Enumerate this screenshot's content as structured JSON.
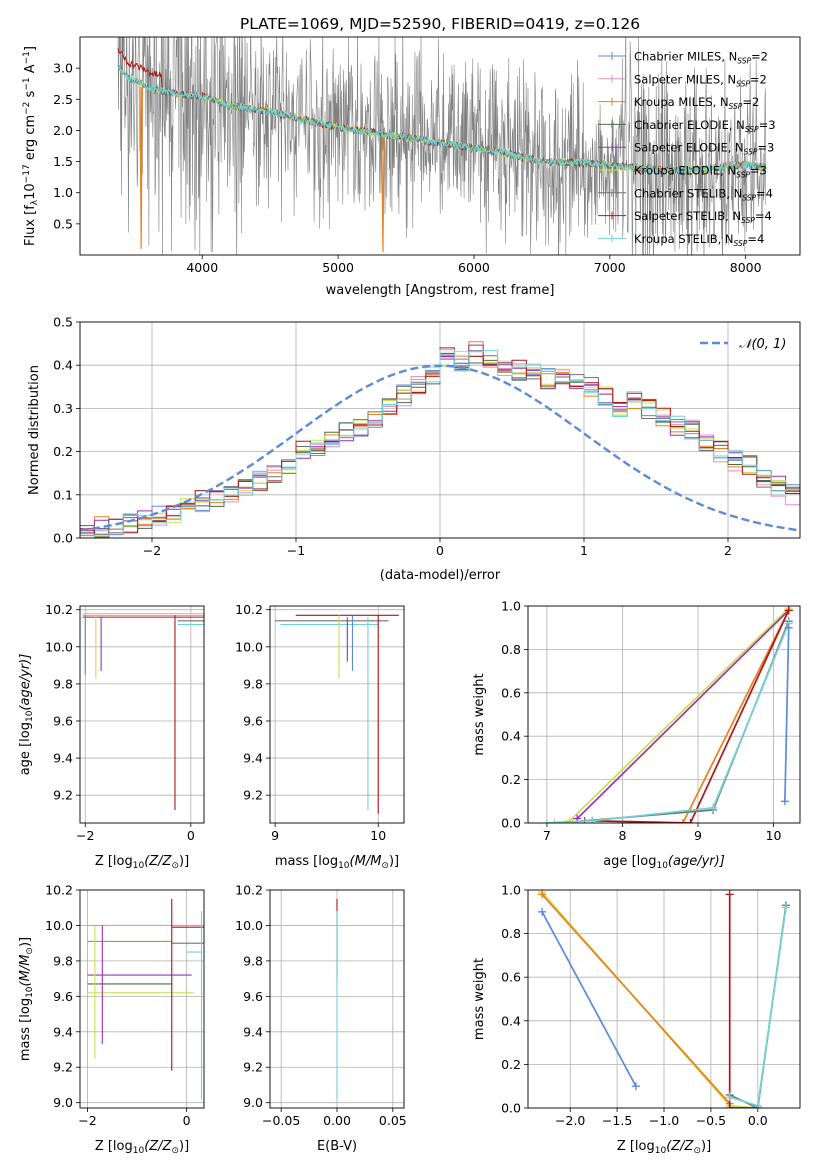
{
  "figure": {
    "title": "PLATE=1069, MJD=52590, FIBERID=0419, z=0.126"
  },
  "colors": {
    "chabrier_miles": "#5b8bd9",
    "salpeter_miles": "#e58fbf",
    "kroupa_miles": "#e8801c",
    "chabrier_elodie": "#4d6b4d",
    "salpeter_elodie": "#9b30b5",
    "kroupa_elodie": "#c8e04f",
    "chabrier_stelib": "#707070",
    "salpeter_stelib": "#b01515",
    "kroupa_stelib": "#6fd3d6",
    "data": "#808080",
    "gaussian": "#5b8bd9",
    "grid": "#b0b0b0"
  },
  "chart_data": [
    {
      "type": "line",
      "id": "spectrum",
      "title": "PLATE=1069, MJD=52590, FIBERID=0419, z=0.126",
      "xlabel": "wavelength [Angstrom, rest frame]",
      "ylabel": "Flux [f_λ 10^-17 erg cm^-2 s^-1 A^-1]",
      "ylabel_parts": {
        "pre": "Flux [f",
        "sub": "λ",
        "mid": "10",
        "sup1": "−17",
        "rest1": " erg cm",
        "sup2": "−2",
        "rest2": " s",
        "sup3": "−1",
        "rest3": " A",
        "sup4": "−1",
        "end": "]"
      },
      "xlim": [
        3100,
        8400
      ],
      "ylim": [
        0,
        3.5
      ],
      "xticks": [
        4000,
        5000,
        6000,
        7000,
        8000
      ],
      "yticks": [
        0.5,
        1.0,
        1.5,
        2.0,
        2.5,
        3.0
      ],
      "ytick_labels": [
        "0.5",
        "1.0",
        "1.5",
        "2.0",
        "2.5",
        "3.0"
      ],
      "continuum": [
        [
          3380,
          3.05
        ],
        [
          3450,
          2.85
        ],
        [
          3550,
          2.75
        ],
        [
          3650,
          2.65
        ],
        [
          3800,
          2.6
        ],
        [
          4000,
          2.55
        ],
        [
          4200,
          2.4
        ],
        [
          4500,
          2.3
        ],
        [
          4800,
          2.15
        ],
        [
          5000,
          2.05
        ],
        [
          5300,
          1.95
        ],
        [
          5600,
          1.85
        ],
        [
          5900,
          1.75
        ],
        [
          6200,
          1.65
        ],
        [
          6500,
          1.5
        ],
        [
          6800,
          1.48
        ],
        [
          7100,
          1.42
        ],
        [
          7400,
          1.35
        ],
        [
          7700,
          1.38
        ],
        [
          8000,
          1.45
        ],
        [
          8150,
          1.4
        ]
      ],
      "legend": [
        {
          "name": "Chabrier MILES",
          "nssp": "2",
          "color": "chabrier_miles"
        },
        {
          "name": "Salpeter MILES",
          "nssp": "2",
          "color": "salpeter_miles"
        },
        {
          "name": "Kroupa MILES",
          "nssp": "2",
          "color": "kroupa_miles"
        },
        {
          "name": "Chabrier ELODIE",
          "nssp": "3",
          "color": "chabrier_elodie"
        },
        {
          "name": "Salpeter ELODIE",
          "nssp": "3",
          "color": "salpeter_elodie"
        },
        {
          "name": "Kroupa ELODIE",
          "nssp": "3",
          "color": "kroupa_elodie"
        },
        {
          "name": "Chabrier STELIB",
          "nssp": "4",
          "color": "chabrier_stelib"
        },
        {
          "name": "Salpeter STELIB",
          "nssp": "4",
          "color": "salpeter_stelib"
        },
        {
          "name": "Kroupa STELIB",
          "nssp": "4",
          "color": "kroupa_stelib"
        }
      ],
      "legend_label_template": ", N",
      "legend_sub": "SSP",
      "legend_eq": "="
    },
    {
      "type": "line",
      "id": "residuals",
      "xlabel": "(data-model)/error",
      "ylabel": "Normed distribution",
      "xlim": [
        -2.5,
        2.5
      ],
      "ylim": [
        0,
        0.5
      ],
      "xticks": [
        -2,
        -1,
        0,
        1,
        2
      ],
      "xtick_labels": [
        "−2",
        "−1",
        "0",
        "1",
        "2"
      ],
      "yticks": [
        0.0,
        0.1,
        0.2,
        0.3,
        0.4,
        0.5
      ],
      "ytick_labels": [
        "0.0",
        "0.1",
        "0.2",
        "0.3",
        "0.4",
        "0.5"
      ],
      "legend": "𝒩(0, 1)",
      "bin_width": 0.1,
      "hist_base": [
        0.02,
        0.025,
        0.03,
        0.035,
        0.04,
        0.05,
        0.06,
        0.07,
        0.085,
        0.09,
        0.1,
        0.12,
        0.13,
        0.15,
        0.17,
        0.2,
        0.21,
        0.23,
        0.25,
        0.26,
        0.28,
        0.3,
        0.33,
        0.35,
        0.38,
        0.42,
        0.41,
        0.43,
        0.42,
        0.4,
        0.39,
        0.38,
        0.37,
        0.38,
        0.36,
        0.35,
        0.33,
        0.3,
        0.32,
        0.3,
        0.28,
        0.26,
        0.25,
        0.22,
        0.2,
        0.18,
        0.17,
        0.14,
        0.12,
        0.1,
        0.09,
        0.08,
        0.07,
        0.06,
        0.05,
        0.04,
        0.035,
        0.03,
        0.03,
        0.02
      ],
      "hist_start": -2.45
    },
    {
      "type": "scatter",
      "id": "age_vs_Z",
      "xlabel": "Z [log10(Z/Z⊙)]",
      "ylabel": "age [log10(age/yr)]",
      "xlim": [
        -2.1,
        0.25
      ],
      "ylim": [
        9.05,
        10.22
      ],
      "xticks": [
        -2,
        0
      ],
      "xtick_labels": [
        "−2",
        "0"
      ],
      "yticks": [
        9.2,
        9.4,
        9.6,
        9.8,
        10.0,
        10.2
      ],
      "ytick_labels": [
        "9.2",
        "9.4",
        "9.6",
        "9.8",
        "10.0",
        "10.2"
      ],
      "hlines": [
        {
          "x0": -2.05,
          "x1": 0.35,
          "y": 10.18,
          "color": "kroupa_elodie"
        },
        {
          "x0": -2.05,
          "x1": 0.35,
          "y": 10.17,
          "color": "salpeter_miles"
        },
        {
          "x0": -2.05,
          "x1": 0.35,
          "y": 10.16,
          "color": "salpeter_stelib"
        },
        {
          "x0": -0.25,
          "x1": 0.35,
          "y": 10.14,
          "color": "chabrier_stelib"
        },
        {
          "x0": -0.25,
          "x1": 0.35,
          "y": 10.12,
          "color": "kroupa_stelib"
        }
      ],
      "vlines": [
        {
          "x": -2.0,
          "y0": 9.85,
          "y1": 10.17,
          "color": "chabrier_miles"
        },
        {
          "x": -1.8,
          "y0": 9.83,
          "y1": 10.17,
          "color": "kroupa_elodie"
        },
        {
          "x": -1.7,
          "y0": 9.87,
          "y1": 10.16,
          "color": "salpeter_elodie"
        },
        {
          "x": -0.3,
          "y0": 9.12,
          "y1": 10.17,
          "color": "salpeter_stelib"
        },
        {
          "x": 0.3,
          "y0": 9.1,
          "y1": 10.15,
          "color": "kroupa_stelib"
        }
      ]
    },
    {
      "type": "scatter",
      "id": "age_vs_mass",
      "xlabel": "mass [log10(M/M⊙)]",
      "xlim": [
        8.95,
        10.25
      ],
      "ylim": [
        9.05,
        10.22
      ],
      "xticks": [
        9,
        10
      ],
      "xtick_labels": [
        "9",
        "10"
      ],
      "yticks": [
        9.2,
        9.4,
        9.6,
        9.8,
        10.0,
        10.2
      ],
      "ytick_labels": [
        "9.2",
        "9.4",
        "9.6",
        "9.8",
        "10.0",
        "10.2"
      ],
      "hlines": [
        {
          "x0": 9.2,
          "x1": 10.2,
          "y": 10.17,
          "color": "salpeter_stelib"
        },
        {
          "x0": 9.0,
          "x1": 10.1,
          "y": 10.14,
          "color": "chabrier_stelib"
        },
        {
          "x0": 9.05,
          "x1": 10.0,
          "y": 10.12,
          "color": "kroupa_stelib"
        }
      ],
      "vlines": [
        {
          "x": 9.62,
          "y0": 9.83,
          "y1": 10.17,
          "color": "kroupa_elodie"
        },
        {
          "x": 9.7,
          "y0": 9.92,
          "y1": 10.16,
          "color": "salpeter_elodie"
        },
        {
          "x": 9.75,
          "y0": 9.87,
          "y1": 10.17,
          "color": "chabrier_miles"
        },
        {
          "x": 9.9,
          "y0": 9.12,
          "y1": 10.16,
          "color": "kroupa_stelib"
        },
        {
          "x": 10.0,
          "y0": 9.1,
          "y1": 10.17,
          "color": "salpeter_stelib"
        }
      ]
    },
    {
      "type": "line",
      "id": "mass_weight_vs_age",
      "xlabel": "age [log10(age/yr)]",
      "ylabel": "mass weight",
      "xlim": [
        6.75,
        10.35
      ],
      "ylim": [
        0,
        1.0
      ],
      "xticks": [
        7,
        8,
        9,
        10
      ],
      "xtick_labels": [
        "7",
        "8",
        "9",
        "10"
      ],
      "yticks": [
        0.0,
        0.2,
        0.4,
        0.6,
        0.8,
        1.0
      ],
      "ytick_labels": [
        "0.0",
        "0.2",
        "0.4",
        "0.6",
        "0.8",
        "1.0"
      ],
      "series": [
        {
          "color": "kroupa_elodie",
          "points": [
            [
              7.1,
              0.0
            ],
            [
              7.3,
              0.01
            ],
            [
              10.2,
              0.99
            ]
          ]
        },
        {
          "color": "salpeter_elodie",
          "points": [
            [
              7.4,
              0.02
            ],
            [
              10.2,
              0.98
            ]
          ]
        },
        {
          "color": "kroupa_miles",
          "points": [
            [
              8.8,
              0.0
            ],
            [
              10.2,
              0.98
            ]
          ]
        },
        {
          "color": "salpeter_stelib",
          "points": [
            [
              7.6,
              0.01
            ],
            [
              8.9,
              0.0
            ],
            [
              10.2,
              0.98
            ]
          ]
        },
        {
          "color": "chabrier_stelib",
          "points": [
            [
              7.5,
              0.01
            ],
            [
              9.2,
              0.06
            ],
            [
              10.2,
              0.93
            ]
          ]
        },
        {
          "color": "kroupa_stelib",
          "points": [
            [
              7.0,
              0.0
            ],
            [
              7.6,
              0.01
            ],
            [
              9.2,
              0.07
            ],
            [
              10.2,
              0.92
            ]
          ]
        },
        {
          "color": "chabrier_miles",
          "points": [
            [
              10.15,
              0.1
            ],
            [
              10.2,
              0.9
            ]
          ]
        }
      ]
    },
    {
      "type": "scatter",
      "id": "mass_vs_Z",
      "xlabel": "Z [log10(Z/Z⊙)]",
      "ylabel": "mass [log10(M/M⊙)]",
      "xlim": [
        -2.15,
        0.35
      ],
      "ylim": [
        8.97,
        10.2
      ],
      "xticks": [
        -2,
        0
      ],
      "xtick_labels": [
        "−2",
        "0"
      ],
      "yticks": [
        9.0,
        9.2,
        9.4,
        9.6,
        9.8,
        10.0,
        10.2
      ],
      "ytick_labels": [
        "9.0",
        "9.2",
        "9.4",
        "9.6",
        "9.8",
        "10.0",
        "10.2"
      ],
      "hlines": [
        {
          "x0": -2.0,
          "x1": 0.35,
          "y": 10.0,
          "color": "salpeter_miles"
        },
        {
          "x0": -0.3,
          "x1": 0.35,
          "y": 9.99,
          "color": "salpeter_stelib"
        },
        {
          "x0": -2.0,
          "x1": -0.3,
          "y": 9.91,
          "color": "kroupa_miles"
        },
        {
          "x0": -0.3,
          "x1": 0.35,
          "y": 9.9,
          "color": "chabrier_stelib"
        },
        {
          "x0": 0.0,
          "x1": 0.3,
          "y": 9.85,
          "color": "kroupa_stelib"
        },
        {
          "x0": -2.0,
          "x1": 0.1,
          "y": 9.72,
          "color": "salpeter_elodie"
        },
        {
          "x0": -2.0,
          "x1": -0.3,
          "y": 9.67,
          "color": "chabrier_elodie"
        },
        {
          "x0": -2.0,
          "x1": 0.15,
          "y": 9.62,
          "color": "kroupa_elodie"
        }
      ],
      "vlines": [
        {
          "x": -1.85,
          "y0": 9.25,
          "y1": 10.0,
          "color": "kroupa_elodie"
        },
        {
          "x": -1.7,
          "y0": 9.33,
          "y1": 10.0,
          "color": "salpeter_elodie"
        },
        {
          "x": -0.3,
          "y0": 9.18,
          "y1": 10.15,
          "color": "salpeter_stelib"
        },
        {
          "x": 0.3,
          "y0": 9.02,
          "y1": 10.08,
          "color": "kroupa_stelib"
        }
      ]
    },
    {
      "type": "scatter",
      "id": "mass_vs_ebv",
      "xlabel": "E(B-V)",
      "xlim": [
        -0.06,
        0.06
      ],
      "ylim": [
        8.97,
        10.2
      ],
      "xticks": [
        -0.05,
        0.0,
        0.05
      ],
      "xtick_labels": [
        "−0.05",
        "0.00",
        "0.05"
      ],
      "yticks": [
        9.0,
        9.2,
        9.4,
        9.6,
        9.8,
        10.0,
        10.2
      ],
      "ytick_labels": [
        "9.0",
        "9.2",
        "9.4",
        "9.6",
        "9.8",
        "10.0",
        "10.2"
      ],
      "vlines": [
        {
          "x": 0.0,
          "y0": 9.7,
          "y1": 10.15,
          "color": "salpeter_stelib"
        },
        {
          "x": 0.0,
          "y0": 9.02,
          "y1": 10.08,
          "color": "kroupa_stelib"
        }
      ]
    },
    {
      "type": "line",
      "id": "mass_weight_vs_Z",
      "xlabel": "Z [log10(Z/Z⊙)]",
      "ylabel": "mass weight",
      "xlim": [
        -2.45,
        0.45
      ],
      "ylim": [
        0,
        1.0
      ],
      "xticks": [
        -2.0,
        -1.5,
        -1.0,
        -0.5,
        0.0
      ],
      "xtick_labels": [
        "−2.0",
        "−1.5",
        "−1.0",
        "−0.5",
        "0.0"
      ],
      "yticks": [
        0.0,
        0.2,
        0.4,
        0.6,
        0.8,
        1.0
      ],
      "ytick_labels": [
        "0.0",
        "0.2",
        "0.4",
        "0.6",
        "0.8",
        "1.0"
      ],
      "series": [
        {
          "color": "chabrier_miles",
          "points": [
            [
              -2.3,
              0.9
            ],
            [
              -1.3,
              0.1
            ]
          ]
        },
        {
          "color": "kroupa_elodie",
          "points": [
            [
              -2.3,
              0.99
            ],
            [
              -0.3,
              0.01
            ],
            [
              0.0,
              0.0
            ]
          ]
        },
        {
          "color": "kroupa_miles",
          "points": [
            [
              -2.3,
              0.98
            ],
            [
              -0.3,
              0.02
            ]
          ]
        },
        {
          "color": "salpeter_stelib",
          "points": [
            [
              -0.3,
              0.98
            ],
            [
              -0.3,
              0.0
            ],
            [
              0.0,
              0.0
            ]
          ]
        },
        {
          "color": "chabrier_stelib",
          "points": [
            [
              -0.3,
              0.06
            ],
            [
              0.0,
              0.0
            ],
            [
              0.3,
              0.93
            ]
          ]
        },
        {
          "color": "kroupa_stelib",
          "points": [
            [
              -0.3,
              0.05
            ],
            [
              0.0,
              0.01
            ],
            [
              0.3,
              0.92
            ]
          ]
        }
      ]
    }
  ]
}
